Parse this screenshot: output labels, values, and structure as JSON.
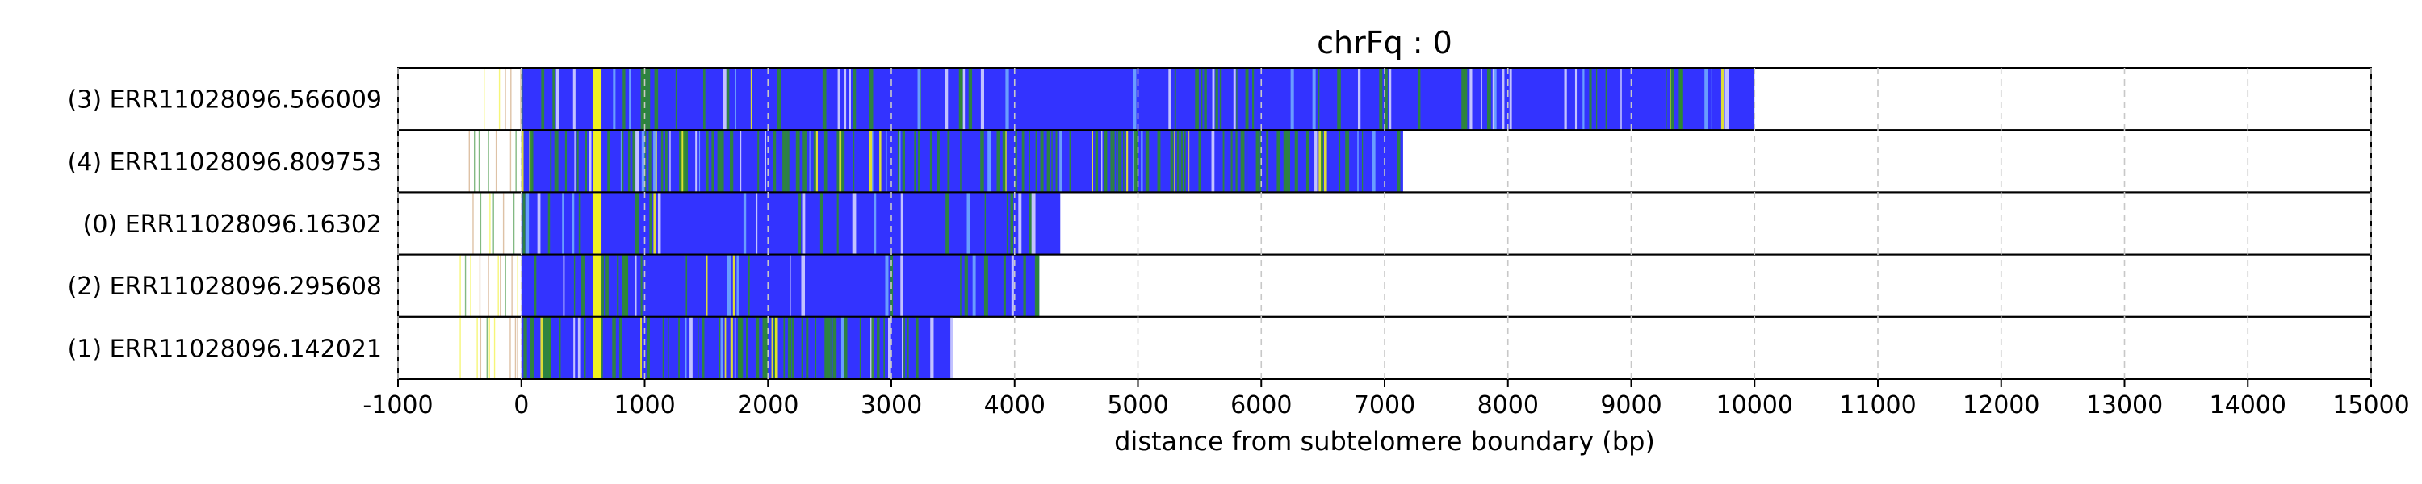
{
  "chart_data": {
    "type": "bar",
    "title": "chrFq : 0",
    "xlabel": "distance from subtelomere boundary (bp)",
    "ylabel": "",
    "xlim": [
      -1000,
      15000
    ],
    "xticks": [
      -1000,
      0,
      1000,
      2000,
      3000,
      4000,
      5000,
      6000,
      7000,
      8000,
      9000,
      10000,
      11000,
      12000,
      13000,
      14000,
      15000
    ],
    "grid": "vertical dashed",
    "colors": {
      "primary": "#3333ff",
      "secondary": "#2e8b2e",
      "highlight": "#f0f020",
      "faint": "#c89a6a",
      "grid": "#c8c8c8"
    },
    "reads": [
      {
        "label": "(3) ERR11028096.566009",
        "start": -430,
        "end": 10000
      },
      {
        "label": "(4) ERR11028096.809753",
        "start": -480,
        "end": 7150
      },
      {
        "label": "(0) ERR11028096.16302",
        "start": -450,
        "end": 4370
      },
      {
        "label": "(2) ERR11028096.295608",
        "start": -500,
        "end": 4200
      },
      {
        "label": "(1) ERR11028096.142021",
        "start": -500,
        "end": 3500
      }
    ]
  }
}
